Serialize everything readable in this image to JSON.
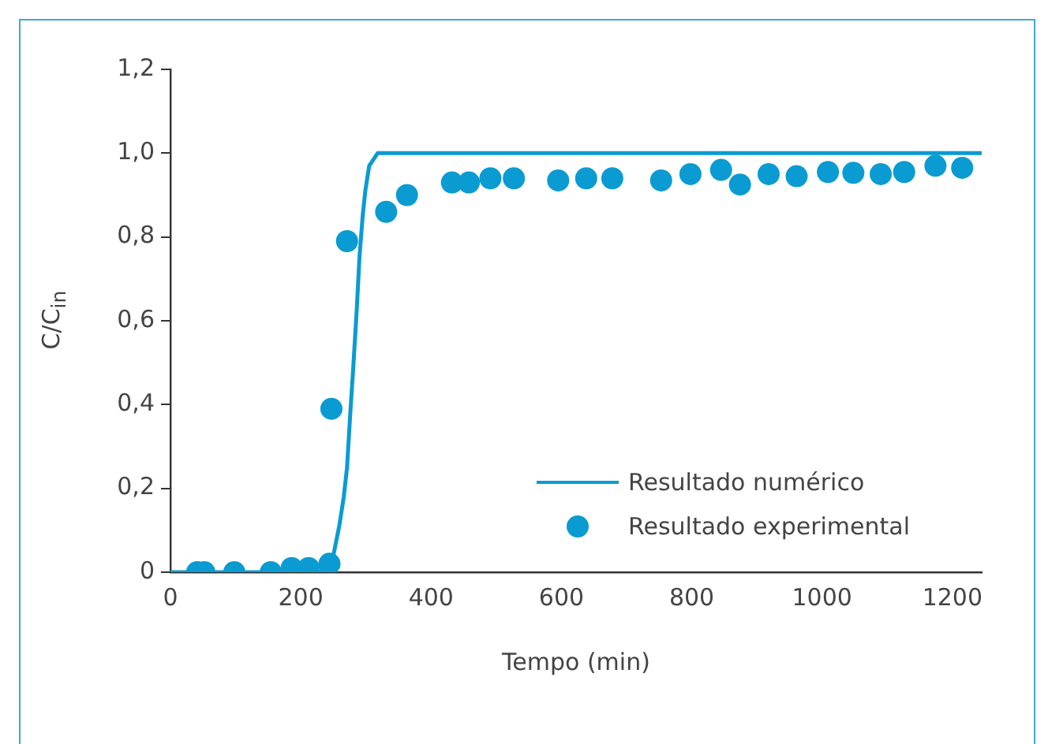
{
  "chart_data": {
    "type": "scatter",
    "xlabel": "Tempo (min)",
    "ylabel": "C/C$_{in}$",
    "xlim": [
      0,
      1245
    ],
    "xticks": [
      0,
      200,
      400,
      600,
      800,
      1000,
      1200
    ],
    "ylim": [
      0,
      1.2
    ],
    "yticks": [
      {
        "value": 0,
        "label": "0"
      },
      {
        "value": 0.2,
        "label": "0,2"
      },
      {
        "value": 0.4,
        "label": "0,4"
      },
      {
        "value": 0.6,
        "label": "0,6"
      },
      {
        "value": 0.8,
        "label": "0,8"
      },
      {
        "value": 1.0,
        "label": "1,0"
      },
      {
        "value": 1.2,
        "label": "1,2"
      }
    ],
    "grid": false,
    "legend": "bottom right",
    "series": [
      {
        "name": "Resultado numérico",
        "type": "line",
        "color": "#0a9bd2",
        "marker": "none",
        "x": [
          0,
          230,
          250,
          259,
          266,
          271,
          276,
          281,
          286,
          290,
          295,
          299,
          305,
          318,
          1245
        ],
        "values": [
          0,
          0,
          0.04,
          0.11,
          0.18,
          0.25,
          0.38,
          0.5,
          0.63,
          0.75,
          0.85,
          0.91,
          0.97,
          1,
          1
        ]
      },
      {
        "name": "Resultado experimental",
        "color": "#0a9bd2",
        "marker": "circle",
        "x": [
          41,
          52,
          98,
          154,
          186,
          212,
          244,
          247,
          271,
          331,
          363,
          432,
          458,
          491,
          527,
          595,
          638,
          678,
          753,
          798,
          845,
          874,
          918,
          961,
          1009,
          1048,
          1090,
          1126,
          1174,
          1215
        ],
        "values": [
          0,
          0,
          0,
          0,
          0.01,
          0.01,
          0.02,
          0.39,
          0.79,
          0.86,
          0.9,
          0.93,
          0.93,
          0.94,
          0.94,
          0.935,
          0.94,
          0.94,
          0.935,
          0.95,
          0.96,
          0.925,
          0.95,
          0.945,
          0.955,
          0.953,
          0.95,
          0.955,
          0.97,
          0.965
        ]
      }
    ]
  }
}
